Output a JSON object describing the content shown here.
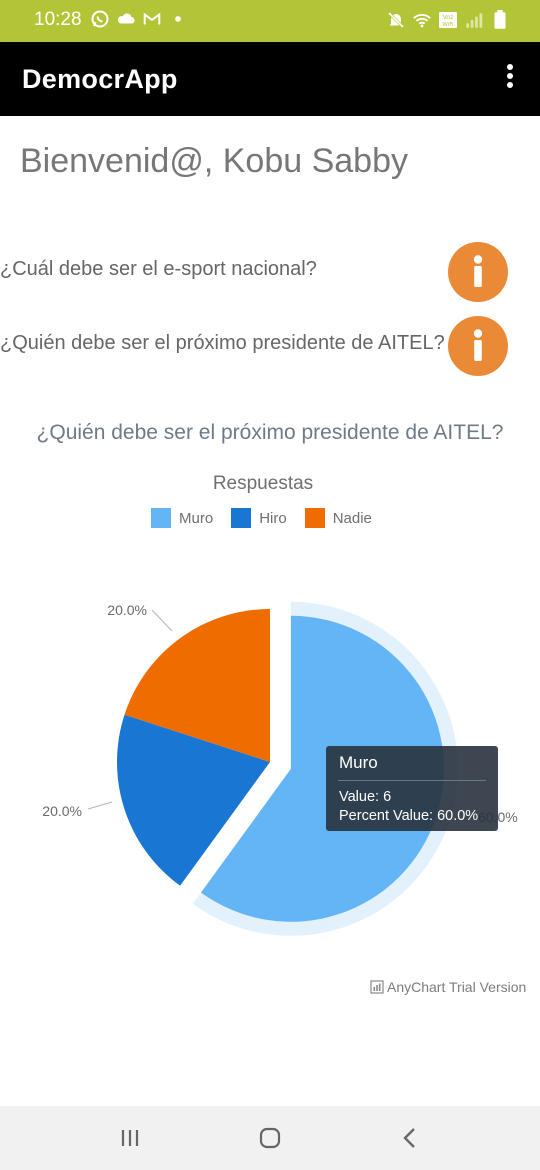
{
  "status_bar": {
    "time": "10:28",
    "left_icons": [
      "whatsapp-icon",
      "cloud-icon",
      "gmail-icon",
      "dot-icon"
    ],
    "right_icons": [
      "mute-icon",
      "wifi-icon",
      "volte-icon",
      "signal-icon",
      "battery-icon"
    ],
    "volte_label": "Voz WiFi",
    "color": "#b3c436"
  },
  "app_bar": {
    "title": "DemocrApp",
    "menu_icon": "more-vert-icon"
  },
  "welcome": "Bienvenid@, Kobu Sabby",
  "polls": [
    {
      "question": "¿Cuál debe ser el e-sport nacional?",
      "button_icon": "info-icon"
    },
    {
      "question": "¿Quién debe ser el próximo presidente de AITEL?",
      "button_icon": "info-icon"
    }
  ],
  "accent_color": "#ea8a37",
  "chart_question": "¿Quién debe ser el próximo presidente de AITEL?",
  "chart_data": {
    "type": "pie",
    "title": "Respuestas",
    "legend_position": "top",
    "categories": [
      "Muro",
      "Hiro",
      "Nadie"
    ],
    "values": [
      6,
      2,
      2
    ],
    "colors": [
      "#64b5f6",
      "#1976d2",
      "#ef6c00"
    ],
    "labels": [
      "60.0%",
      "20.0%",
      "20.0%"
    ],
    "exploded": "Muro",
    "tooltip": {
      "title": "Muro",
      "value_line": "Value: 6",
      "percent_line": "Percent Value: 60.0%"
    },
    "credits": "AnyChart Trial Version"
  },
  "nav_bar": {
    "icons": [
      "recent-apps-icon",
      "home-icon",
      "back-icon"
    ]
  }
}
